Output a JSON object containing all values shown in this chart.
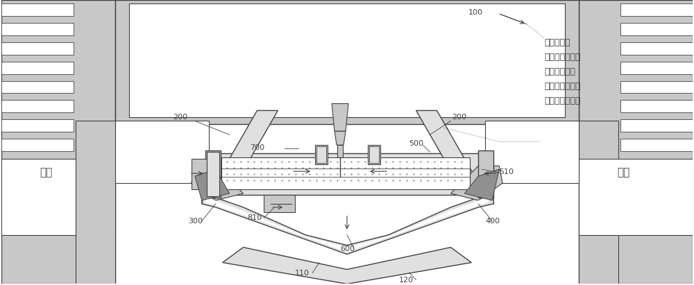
{
  "bg_color": "#ffffff",
  "line_color": "#404040",
  "gray_fill": "#c8c8c8",
  "light_gray": "#e0e0e0",
  "dark_gray": "#909090",
  "white": "#ffffff",
  "fig_width": 10.0,
  "fig_height": 4.11,
  "annotation_text": "启动状态下\n可变压缩活塞将\n缩回至最低点\n低于压缩活塞与\n燃烧室的结合面"
}
